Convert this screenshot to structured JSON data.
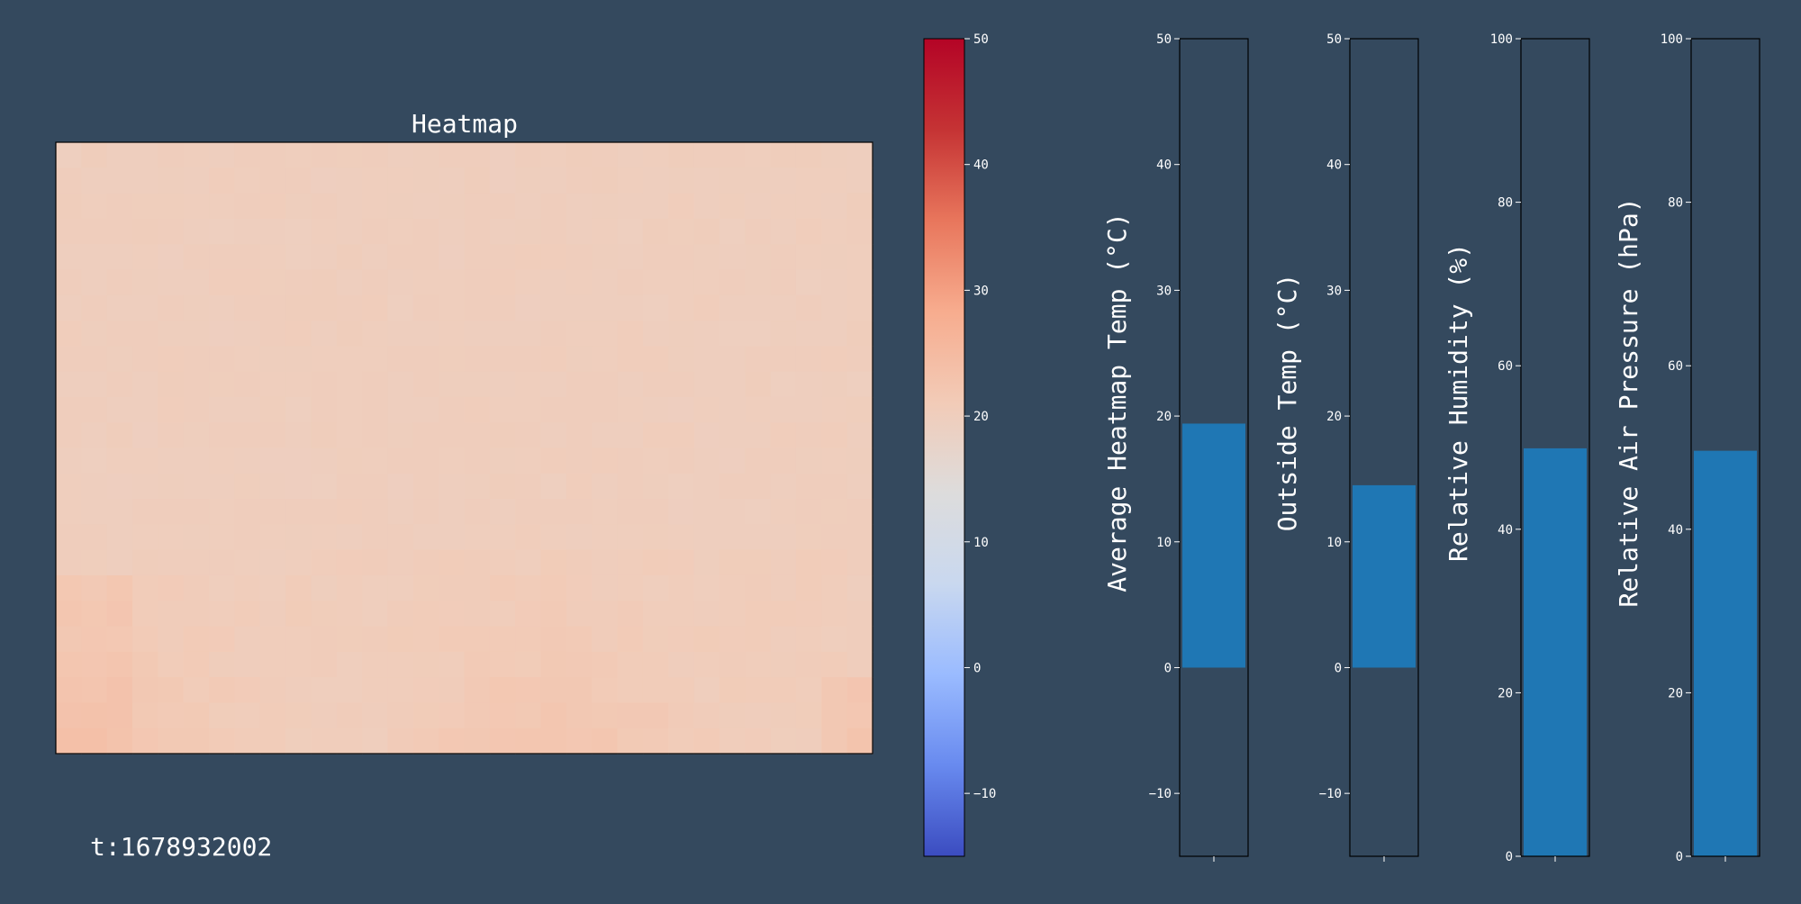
{
  "colors": {
    "background": "#34495e",
    "bar": "#1f77b4",
    "axis": "#000000",
    "text": "#ffffff",
    "colormap": [
      "#3b4cc0",
      "#688aef",
      "#9abbff",
      "#c9d8ef",
      "#dddcdc",
      "#f2cbb7",
      "#f7ac8e",
      "#e8765c",
      "#c53334",
      "#b40426"
    ]
  },
  "timestamp_label": "t:1678932002",
  "chart_data": [
    {
      "type": "heatmap",
      "title": "Heatmap",
      "rows": 24,
      "cols": 32,
      "value_range": [
        -15,
        50
      ],
      "approximate_range": [
        19,
        24
      ],
      "description_rows": "mostly uniform light grey field near 19-20 °C with warmer (~22-24 °C) patches along the bottom rows"
    },
    {
      "type": "colorbar",
      "colormap": "coolwarm",
      "range": [
        -15,
        50
      ],
      "ticks": [
        -10,
        0,
        10,
        20,
        30,
        40,
        50
      ],
      "tick_labels": [
        "−10",
        "0",
        "10",
        "20",
        "30",
        "40",
        "50"
      ]
    },
    {
      "type": "bar",
      "ylabel": "Average Heatmap Temp (°C)",
      "ylim": [
        -15,
        50
      ],
      "ticks": [
        -10,
        0,
        10,
        20,
        30,
        40,
        50
      ],
      "tick_labels": [
        "−10",
        "0",
        "10",
        "20",
        "30",
        "40",
        "50"
      ],
      "value": 19.4
    },
    {
      "type": "bar",
      "ylabel": "Outside Temp (°C)",
      "ylim": [
        -15,
        50
      ],
      "ticks": [
        -10,
        0,
        10,
        20,
        30,
        40,
        50
      ],
      "tick_labels": [
        "−10",
        "0",
        "10",
        "20",
        "30",
        "40",
        "50"
      ],
      "value": 14.5
    },
    {
      "type": "bar",
      "ylabel": "Relative Humidity (%)",
      "ylim": [
        0,
        100
      ],
      "ticks": [
        0,
        20,
        40,
        60,
        80,
        100
      ],
      "tick_labels": [
        "0",
        "20",
        "40",
        "60",
        "80",
        "100"
      ],
      "value": 49.9
    },
    {
      "type": "bar",
      "ylabel": "Relative Air Pressure (hPa)",
      "ylim": [
        0,
        100
      ],
      "ticks": [
        0,
        20,
        40,
        60,
        80,
        100
      ],
      "tick_labels": [
        "0",
        "20",
        "40",
        "60",
        "80",
        "100"
      ],
      "value": 49.6
    }
  ]
}
